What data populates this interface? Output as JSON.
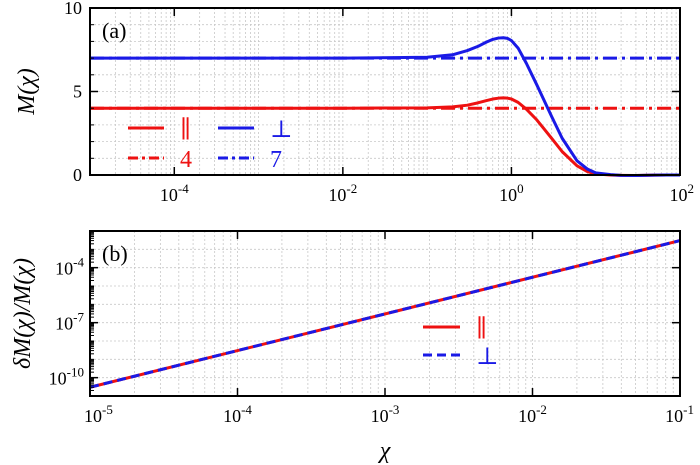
{
  "chart_data": [
    {
      "panel_label": "(a)",
      "type": "line",
      "xscale": "log",
      "xlim": [
        1e-05,
        100
      ],
      "ylim": [
        0,
        10
      ],
      "ylabel": "M(χ)",
      "xticks": [
        {
          "base": "10",
          "exp": "-4",
          "value": 0.0001
        },
        {
          "base": "10",
          "exp": "-2",
          "value": 0.01
        },
        {
          "base": "10",
          "exp": "0",
          "value": 1
        },
        {
          "base": "10",
          "exp": "2",
          "value": 100
        }
      ],
      "yticks": [
        {
          "label": "0",
          "value": 0
        },
        {
          "label": "5",
          "value": 5
        },
        {
          "label": "10",
          "value": 10
        }
      ],
      "grid": true,
      "legend_position": "bottom-left",
      "series": [
        {
          "name": "∥",
          "color": "#ee1111",
          "style": "solid",
          "x": [
            1e-05,
            0.01,
            0.1,
            0.2,
            0.3,
            0.4,
            0.5,
            0.6,
            0.7,
            0.8,
            0.9,
            1.0,
            1.2,
            1.5,
            2,
            3,
            4,
            6,
            8,
            10,
            15,
            20,
            30,
            50,
            70,
            100
          ],
          "y": [
            4.0,
            4.0,
            4.02,
            4.08,
            4.18,
            4.32,
            4.45,
            4.55,
            4.6,
            4.62,
            4.6,
            4.55,
            4.35,
            3.95,
            3.3,
            2.2,
            1.4,
            0.55,
            0.2,
            0.07,
            0.0,
            -0.02,
            -0.03,
            -0.01,
            0.0,
            0.0
          ]
        },
        {
          "name": "4",
          "color": "#ee1111",
          "style": "dashdot",
          "x": [
            1e-05,
            100
          ],
          "y": [
            4.0,
            4.0
          ]
        },
        {
          "name": "⊥",
          "color": "#1a1ae6",
          "style": "solid",
          "x": [
            1e-05,
            0.01,
            0.1,
            0.2,
            0.3,
            0.4,
            0.5,
            0.6,
            0.7,
            0.8,
            0.9,
            1.0,
            1.2,
            1.5,
            2,
            3,
            4,
            6,
            8,
            10,
            15,
            20,
            30,
            50,
            70,
            100
          ],
          "y": [
            7.0,
            7.0,
            7.05,
            7.2,
            7.45,
            7.7,
            7.95,
            8.12,
            8.2,
            8.22,
            8.18,
            8.05,
            7.6,
            6.7,
            5.4,
            3.5,
            2.2,
            0.85,
            0.35,
            0.13,
            0.02,
            -0.02,
            -0.03,
            -0.01,
            0.0,
            0.0
          ]
        },
        {
          "name": "7",
          "color": "#1a1ae6",
          "style": "dashdot",
          "x": [
            1e-05,
            100
          ],
          "y": [
            7.0,
            7.0
          ]
        }
      ]
    },
    {
      "panel_label": "(b)",
      "type": "line",
      "xscale": "log",
      "yscale": "log",
      "xlim": [
        1e-05,
        0.1
      ],
      "ylim": [
        1e-11,
        0.01
      ],
      "xlabel": "χ",
      "ylabel": "δM(χ)/M(χ)",
      "xticks": [
        {
          "base": "10",
          "exp": "-5",
          "value": 1e-05
        },
        {
          "base": "10",
          "exp": "-4",
          "value": 0.0001
        },
        {
          "base": "10",
          "exp": "-3",
          "value": 0.001
        },
        {
          "base": "10",
          "exp": "-2",
          "value": 0.01
        },
        {
          "base": "10",
          "exp": "-1",
          "value": 0.1
        }
      ],
      "yticks": [
        {
          "base": "10",
          "exp": "-10",
          "value": 1e-10
        },
        {
          "base": "10",
          "exp": "-7",
          "value": 1e-07
        },
        {
          "base": "10",
          "exp": "-4",
          "value": 0.0001
        }
      ],
      "grid": true,
      "legend_position": "center-right",
      "series": [
        {
          "name": "∥",
          "color": "#ee1111",
          "style": "solid",
          "x": [
            1e-05,
            0.1
          ],
          "y": [
            3e-11,
            0.003
          ]
        },
        {
          "name": "⊥",
          "color": "#1a1ae6",
          "style": "dashed",
          "x": [
            1e-05,
            0.1
          ],
          "y": [
            3e-11,
            0.003
          ]
        }
      ]
    }
  ]
}
